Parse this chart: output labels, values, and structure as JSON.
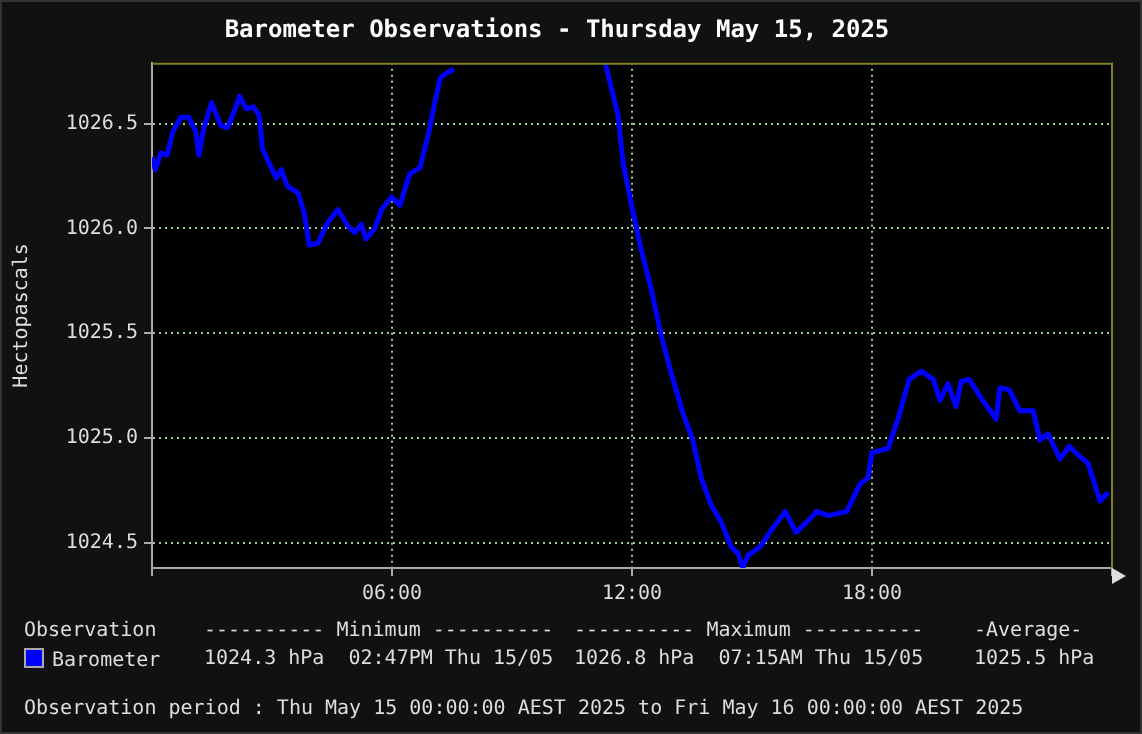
{
  "chart_data": {
    "type": "line",
    "title": "Barometer Observations - Thursday May 15, 2025",
    "ylabel": "Hectopascals",
    "x": [
      0,
      0.08,
      0.22,
      0.38,
      0.52,
      0.72,
      0.92,
      1.1,
      1.17,
      1.3,
      1.49,
      1.72,
      1.89,
      2.06,
      2.19,
      2.36,
      2.53,
      2.68,
      2.76,
      2.98,
      3.11,
      3.23,
      3.39,
      3.65,
      3.81,
      3.93,
      4.15,
      4.4,
      4.65,
      4.9,
      5.07,
      5.23,
      5.35,
      5.57,
      5.74,
      5.99,
      6.2,
      6.44,
      6.7,
      6.91,
      7.07,
      7.21,
      7.45,
      7.55,
      9.5,
      11.33,
      11.65,
      11.78,
      12,
      12.23,
      12.48,
      12.73,
      12.98,
      13.27,
      13.52,
      13.73,
      13.98,
      14.23,
      14.48,
      14.65,
      14.77,
      14.9,
      15.2,
      15.48,
      15.83,
      16.1,
      16.37,
      16.62,
      16.9,
      17.37,
      17.7,
      17.9,
      18,
      18.4,
      18.65,
      18.93,
      19.23,
      19.53,
      19.7,
      19.9,
      20.1,
      20.23,
      20.43,
      20.73,
      21.1,
      21.2,
      21.43,
      21.7,
      22.03,
      22.2,
      22.4,
      22.7,
      22.93,
      23.15,
      23.4,
      23.7,
      23.9
    ],
    "series": [
      {
        "name": "Barometer",
        "color": "#0000ff",
        "values": [
          1026.34,
          1026.28,
          1026.36,
          1026.35,
          1026.46,
          1026.53,
          1026.53,
          1026.46,
          1026.35,
          1026.48,
          1026.6,
          1026.49,
          1026.48,
          1026.56,
          1026.63,
          1026.57,
          1026.58,
          1026.54,
          1026.38,
          1026.29,
          1026.24,
          1026.28,
          1026.2,
          1026.17,
          1026.07,
          1025.92,
          1025.93,
          1026.03,
          1026.09,
          1026.01,
          1025.98,
          1026.02,
          1025.95,
          1026,
          1026.09,
          1026.15,
          1026.11,
          1026.26,
          1026.29,
          1026.45,
          1026.6,
          1026.72,
          1026.75,
          1026.76,
          null,
          1026.79,
          1026.54,
          1026.31,
          1026.1,
          1025.9,
          1025.71,
          1025.49,
          1025.31,
          1025.12,
          1024.99,
          1024.81,
          1024.68,
          1024.6,
          1024.48,
          1024.45,
          1024.38,
          1024.44,
          1024.48,
          1024.56,
          1024.65,
          1024.55,
          1024.6,
          1024.65,
          1024.63,
          1024.65,
          1024.78,
          1024.81,
          1024.93,
          1024.95,
          1025.09,
          1025.28,
          1025.32,
          1025.28,
          1025.18,
          1025.26,
          1025.15,
          1025.27,
          1025.28,
          1025.19,
          1025.09,
          1025.24,
          1025.23,
          1025.13,
          1025.13,
          1024.99,
          1025.02,
          1024.9,
          1024.96,
          1024.92,
          1024.88,
          1024.7,
          1024.74
        ]
      }
    ],
    "xlim": [
      0,
      24
    ],
    "xticks": [
      {
        "value": 0,
        "label": null
      },
      {
        "value": 6,
        "label": "06:00"
      },
      {
        "value": 12,
        "label": "12:00"
      },
      {
        "value": 18,
        "label": "18:00"
      },
      {
        "value": 24,
        "label": null
      }
    ],
    "ylim": [
      1024.38,
      1026.79
    ],
    "yticks": [
      1024.5,
      {
        "value": 1025,
        "label": "1025.0"
      },
      1025.5,
      {
        "value": 1026,
        "label": "1026.0"
      },
      1026.5
    ],
    "grid": true,
    "legend": "bottom",
    "marker": "none",
    "line_style": "solid",
    "annotations": [
      "Observation",
      "---------- Minimum ----------",
      "---------- Maximum ----------",
      "-Average-",
      "1024.3 hPa  02:47PM Thu 15/05",
      "1026.8 hPa  07:15AM Thu 15/05",
      "1025.5 hPa",
      "Observation period : Thu May 15 00:00:00 AEST 2025 to Fri May 16 00:00:00 AEST 2025"
    ]
  }
}
